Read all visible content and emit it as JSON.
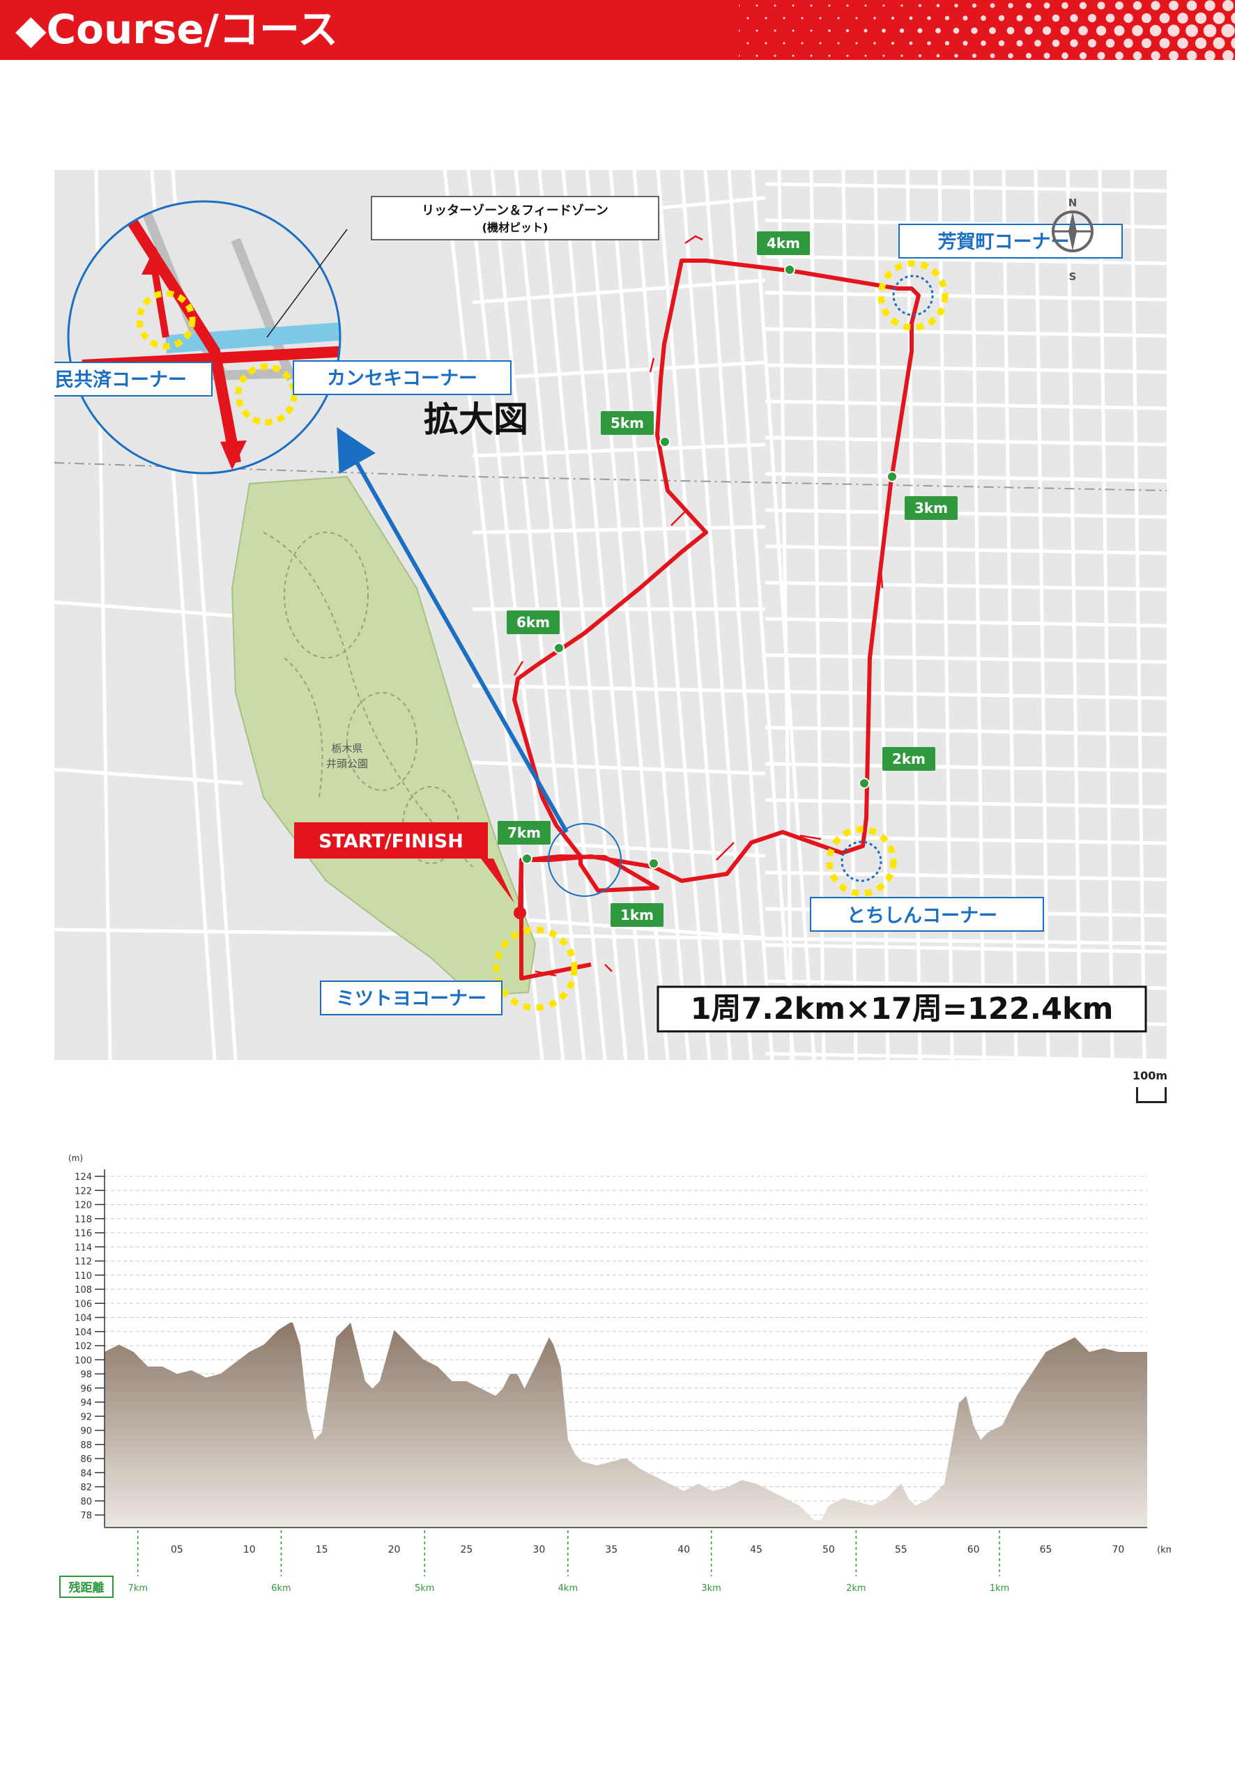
{
  "header": {
    "title": "◆Course/コース",
    "background_color": "#e4161d"
  },
  "map": {
    "callout_zone": "リッターゾーン＆フィードゾーン",
    "callout_pit": "(機材ピット)",
    "zoom_label": "拡大図",
    "park_label_line1": "栃木県",
    "park_label_line2": "井頭公園",
    "start_finish": "START/FINISH",
    "lap_info": "1周7.2km×17周=122.4km",
    "compass_n": "N",
    "compass_s": "S",
    "route_color": "#e3141b",
    "park_color": "#c9dba6",
    "km_markers": [
      "1km",
      "2km",
      "3km",
      "4km",
      "5km",
      "6km",
      "7km"
    ],
    "corners": {
      "kokumin": "国民共済コーナー",
      "kanseki": "カンセキコーナー",
      "haga": "芳賀町コーナー",
      "tochishin": "とちしんコーナー",
      "mitsutoyo": "ミツトヨコーナー"
    },
    "scale_label": "100m"
  },
  "elevation": {
    "y_unit": "(m)",
    "x_unit": "(km)",
    "remaining_label": "残距離",
    "ylim": [
      76,
      124
    ],
    "xlim": [
      0,
      72
    ],
    "y_ticks": [
      "124",
      "122",
      "120",
      "118",
      "116",
      "114",
      "112",
      "110",
      "108",
      "106",
      "104",
      "104",
      "102",
      "100",
      "98",
      "96",
      "94",
      "92",
      "90",
      "88",
      "86",
      "84",
      "82",
      "80",
      "78"
    ],
    "x_ticks": [
      "05",
      "10",
      "15",
      "20",
      "25",
      "30",
      "35",
      "40",
      "45",
      "50",
      "55",
      "60",
      "65",
      "70"
    ],
    "x_tick_values": [
      5,
      10,
      15,
      20,
      25,
      30,
      35,
      40,
      45,
      50,
      55,
      60,
      65,
      70
    ],
    "remaining_ticks": [
      "7km",
      "6km",
      "5km",
      "4km",
      "3km",
      "2km",
      "1km"
    ],
    "remaining_positions": [
      2.3,
      12.2,
      22.1,
      32.0,
      41.9,
      51.9,
      61.8
    ],
    "fill_color": "#9c8a7c",
    "profile": [
      [
        0,
        100
      ],
      [
        1,
        101
      ],
      [
        2,
        100
      ],
      [
        3,
        98
      ],
      [
        4,
        98
      ],
      [
        5,
        97
      ],
      [
        6,
        97.5
      ],
      [
        7,
        96.5
      ],
      [
        8,
        97
      ],
      [
        9,
        98.5
      ],
      [
        10,
        100
      ],
      [
        11,
        101
      ],
      [
        12,
        103
      ],
      [
        12.8,
        104
      ],
      [
        13,
        104
      ],
      [
        13.5,
        101
      ],
      [
        14,
        92
      ],
      [
        14.5,
        88
      ],
      [
        15,
        89
      ],
      [
        16,
        102
      ],
      [
        17,
        104
      ],
      [
        18,
        96
      ],
      [
        18.5,
        95
      ],
      [
        19,
        96
      ],
      [
        20,
        103
      ],
      [
        21,
        101
      ],
      [
        22,
        99
      ],
      [
        23,
        98
      ],
      [
        24,
        96
      ],
      [
        25,
        96
      ],
      [
        26,
        95
      ],
      [
        27,
        94
      ],
      [
        27.5,
        95
      ],
      [
        28,
        97
      ],
      [
        28.5,
        97
      ],
      [
        29,
        95
      ],
      [
        30,
        99
      ],
      [
        30.7,
        102
      ],
      [
        31,
        101
      ],
      [
        31.5,
        98
      ],
      [
        32,
        88
      ],
      [
        32.5,
        86
      ],
      [
        33,
        85
      ],
      [
        34,
        84.5
      ],
      [
        35,
        85
      ],
      [
        36,
        85.5
      ],
      [
        37,
        84
      ],
      [
        38,
        83
      ],
      [
        39,
        82
      ],
      [
        40,
        81
      ],
      [
        41,
        82
      ],
      [
        42,
        81
      ],
      [
        43,
        81.5
      ],
      [
        44,
        82.5
      ],
      [
        45,
        82
      ],
      [
        46,
        81
      ],
      [
        47,
        80
      ],
      [
        48,
        79
      ],
      [
        49,
        77
      ],
      [
        49.5,
        77
      ],
      [
        50,
        79
      ],
      [
        51,
        80
      ],
      [
        52,
        79.5
      ],
      [
        53,
        79
      ],
      [
        54,
        80
      ],
      [
        55,
        82
      ],
      [
        55.5,
        80
      ],
      [
        56,
        79
      ],
      [
        57,
        80
      ],
      [
        58,
        82
      ],
      [
        59,
        93
      ],
      [
        59.5,
        94
      ],
      [
        60,
        90
      ],
      [
        60.5,
        88
      ],
      [
        61,
        89
      ],
      [
        62,
        90
      ],
      [
        63,
        94
      ],
      [
        64,
        97
      ],
      [
        65,
        100
      ],
      [
        66,
        101
      ],
      [
        67,
        102
      ],
      [
        68,
        100
      ],
      [
        69,
        100.5
      ],
      [
        70,
        100
      ],
      [
        71,
        100
      ],
      [
        72,
        100
      ]
    ]
  }
}
